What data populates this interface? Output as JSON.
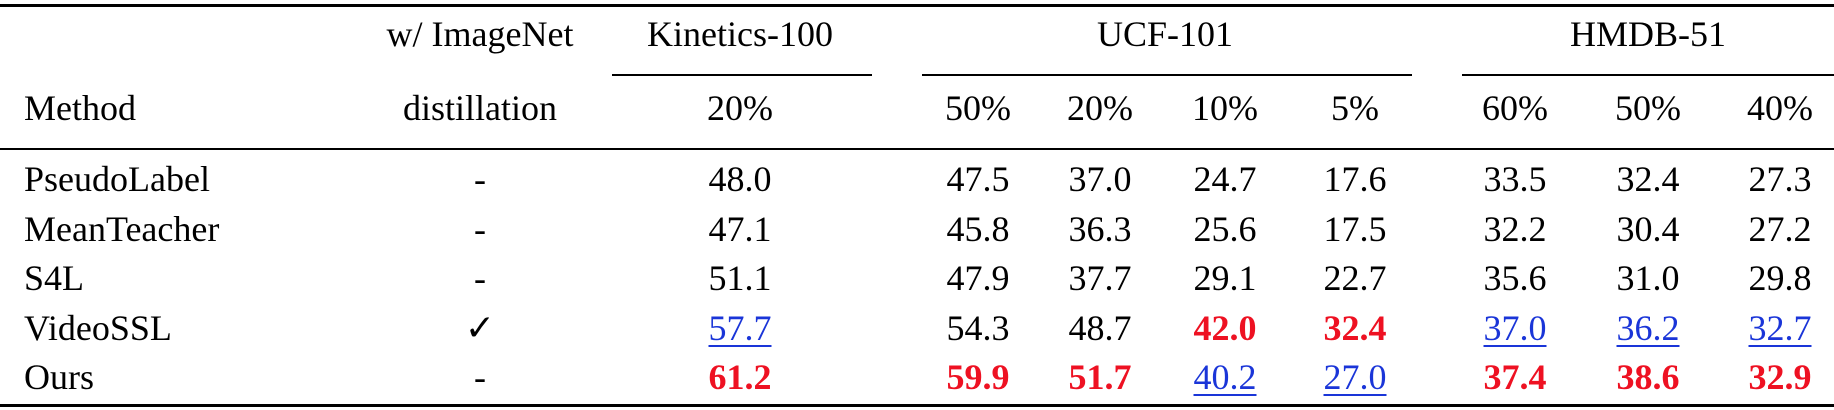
{
  "table": {
    "group_headers": [
      {
        "label": "w/ ImageNet"
      },
      {
        "label": "Kinetics-100"
      },
      {
        "label": "UCF-101"
      },
      {
        "label": "HMDB-51"
      }
    ],
    "sub_headers": {
      "method": "Method",
      "distill": "distillation",
      "kinetics": [
        "20%"
      ],
      "ucf": [
        "50%",
        "20%",
        "10%",
        "5%"
      ],
      "hmdb": [
        "60%",
        "50%",
        "40%"
      ]
    },
    "rows": [
      {
        "method": "PseudoLabel",
        "distill": "-",
        "values": [
          {
            "v": "48.0",
            "s": ""
          },
          {
            "v": "47.5",
            "s": ""
          },
          {
            "v": "37.0",
            "s": ""
          },
          {
            "v": "24.7",
            "s": ""
          },
          {
            "v": "17.6",
            "s": ""
          },
          {
            "v": "33.5",
            "s": ""
          },
          {
            "v": "32.4",
            "s": ""
          },
          {
            "v": "27.3",
            "s": ""
          }
        ]
      },
      {
        "method": "MeanTeacher",
        "distill": "-",
        "values": [
          {
            "v": "47.1",
            "s": ""
          },
          {
            "v": "45.8",
            "s": ""
          },
          {
            "v": "36.3",
            "s": ""
          },
          {
            "v": "25.6",
            "s": ""
          },
          {
            "v": "17.5",
            "s": ""
          },
          {
            "v": "32.2",
            "s": ""
          },
          {
            "v": "30.4",
            "s": ""
          },
          {
            "v": "27.2",
            "s": ""
          }
        ]
      },
      {
        "method": "S4L",
        "distill": "-",
        "values": [
          {
            "v": "51.1",
            "s": ""
          },
          {
            "v": "47.9",
            "s": ""
          },
          {
            "v": "37.7",
            "s": ""
          },
          {
            "v": "29.1",
            "s": ""
          },
          {
            "v": "22.7",
            "s": ""
          },
          {
            "v": "35.6",
            "s": ""
          },
          {
            "v": "31.0",
            "s": ""
          },
          {
            "v": "29.8",
            "s": ""
          }
        ]
      },
      {
        "method": "VideoSSL",
        "distill": "✓",
        "values": [
          {
            "v": "57.7",
            "s": "second"
          },
          {
            "v": "54.3",
            "s": ""
          },
          {
            "v": "48.7",
            "s": ""
          },
          {
            "v": "42.0",
            "s": "best"
          },
          {
            "v": "32.4",
            "s": "best"
          },
          {
            "v": "37.0",
            "s": "second"
          },
          {
            "v": "36.2",
            "s": "second"
          },
          {
            "v": "32.7",
            "s": "second"
          }
        ]
      },
      {
        "method": "Ours",
        "distill": "-",
        "values": [
          {
            "v": "61.2",
            "s": "best"
          },
          {
            "v": "59.9",
            "s": "best"
          },
          {
            "v": "51.7",
            "s": "best"
          },
          {
            "v": "40.2",
            "s": "second"
          },
          {
            "v": "27.0",
            "s": "second"
          },
          {
            "v": "37.4",
            "s": "best"
          },
          {
            "v": "38.6",
            "s": "best"
          },
          {
            "v": "32.9",
            "s": "best"
          }
        ]
      }
    ],
    "colors": {
      "best": "#ee1122",
      "second": "#1a35d8"
    }
  }
}
